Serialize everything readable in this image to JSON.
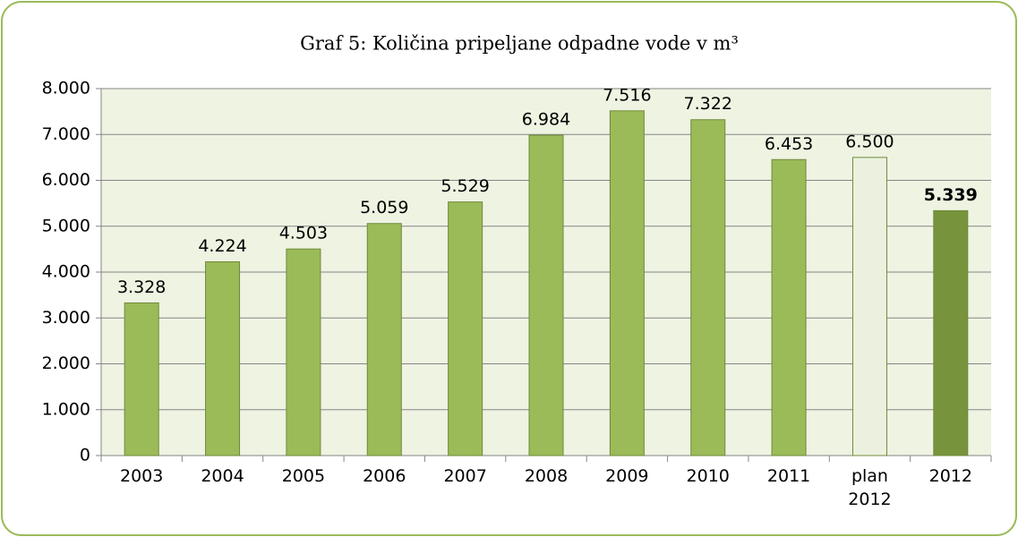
{
  "chart_data": {
    "type": "bar",
    "title": "Graf 5: Količina pripeljane odpadne vode v m³",
    "categories": [
      "2003",
      "2004",
      "2005",
      "2006",
      "2007",
      "2008",
      "2009",
      "2010",
      "2011",
      "plan 2012",
      "2012"
    ],
    "values": [
      3328,
      4224,
      4503,
      5059,
      5529,
      6984,
      7516,
      7322,
      6453,
      6500,
      5339
    ],
    "value_labels": [
      "3.328",
      "4.224",
      "4.503",
      "5.059",
      "5.529",
      "6.984",
      "7.516",
      "7.322",
      "6.453",
      "6.500",
      "5.339"
    ],
    "colors": [
      "#9bbb59",
      "#9bbb59",
      "#9bbb59",
      "#9bbb59",
      "#9bbb59",
      "#9bbb59",
      "#9bbb59",
      "#9bbb59",
      "#9bbb59",
      "#ebf1de",
      "#77933c"
    ],
    "ylim": [
      0,
      8000
    ],
    "yticks": [
      {
        "value": 0,
        "label": "0"
      },
      {
        "value": 1000,
        "label": "1.000"
      },
      {
        "value": 2000,
        "label": "2.000"
      },
      {
        "value": 3000,
        "label": "3.000"
      },
      {
        "value": 4000,
        "label": "4.000"
      },
      {
        "value": 5000,
        "label": "5.000"
      },
      {
        "value": 6000,
        "label": "6.000"
      },
      {
        "value": 7000,
        "label": "7.000"
      },
      {
        "value": 8000,
        "label": "8.000"
      }
    ],
    "grid": true
  }
}
